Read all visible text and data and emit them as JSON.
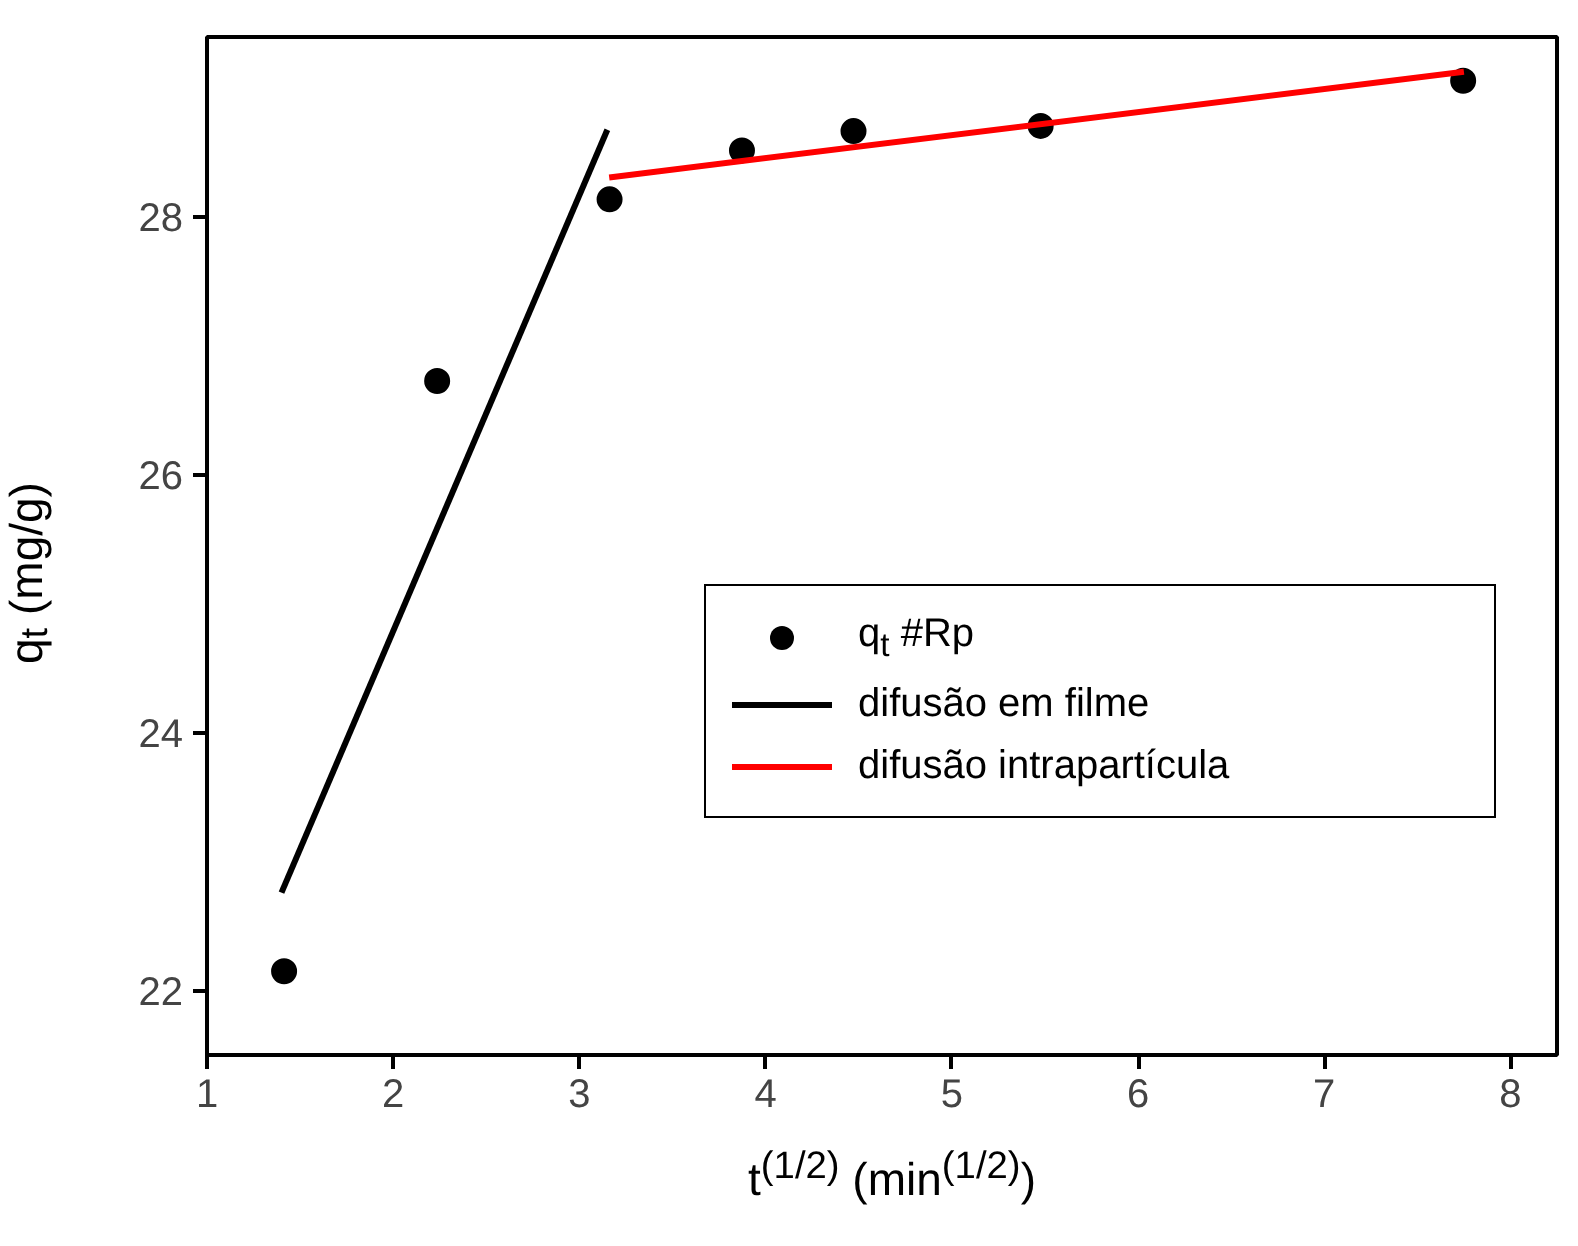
{
  "chart_data": {
    "type": "scatter",
    "xlabel": "t$^{(1/2)}$ (min$^{(1/2)}$)",
    "ylabel": "q$_{t}$ (mg/g)",
    "xlim": [
      1,
      8.25
    ],
    "ylim": [
      21.5,
      29.4
    ],
    "xticks": [
      1,
      2,
      3,
      4,
      5,
      6,
      7,
      8
    ],
    "yticks": [
      22,
      24,
      26,
      28
    ],
    "grid": false,
    "legend": "right",
    "series": [
      {
        "name": "q$_{t}$ #Rp",
        "marker": "circle",
        "color": "#000000",
        "x": [
          1.414,
          2.236,
          3.162,
          3.873,
          4.472,
          5.477,
          7.746
        ],
        "values": [
          22.15,
          26.73,
          28.14,
          28.52,
          28.67,
          28.71,
          29.06
        ]
      },
      {
        "name": "difusão em filme",
        "type": "line",
        "color": "#000000",
        "x": [
          1.4,
          3.15
        ],
        "values": [
          22.76,
          28.68
        ]
      },
      {
        "name": "difusão intrapartícula",
        "type": "line",
        "color": "#ff0000",
        "x": [
          3.16,
          7.75
        ],
        "values": [
          28.31,
          29.13
        ]
      }
    ]
  }
}
